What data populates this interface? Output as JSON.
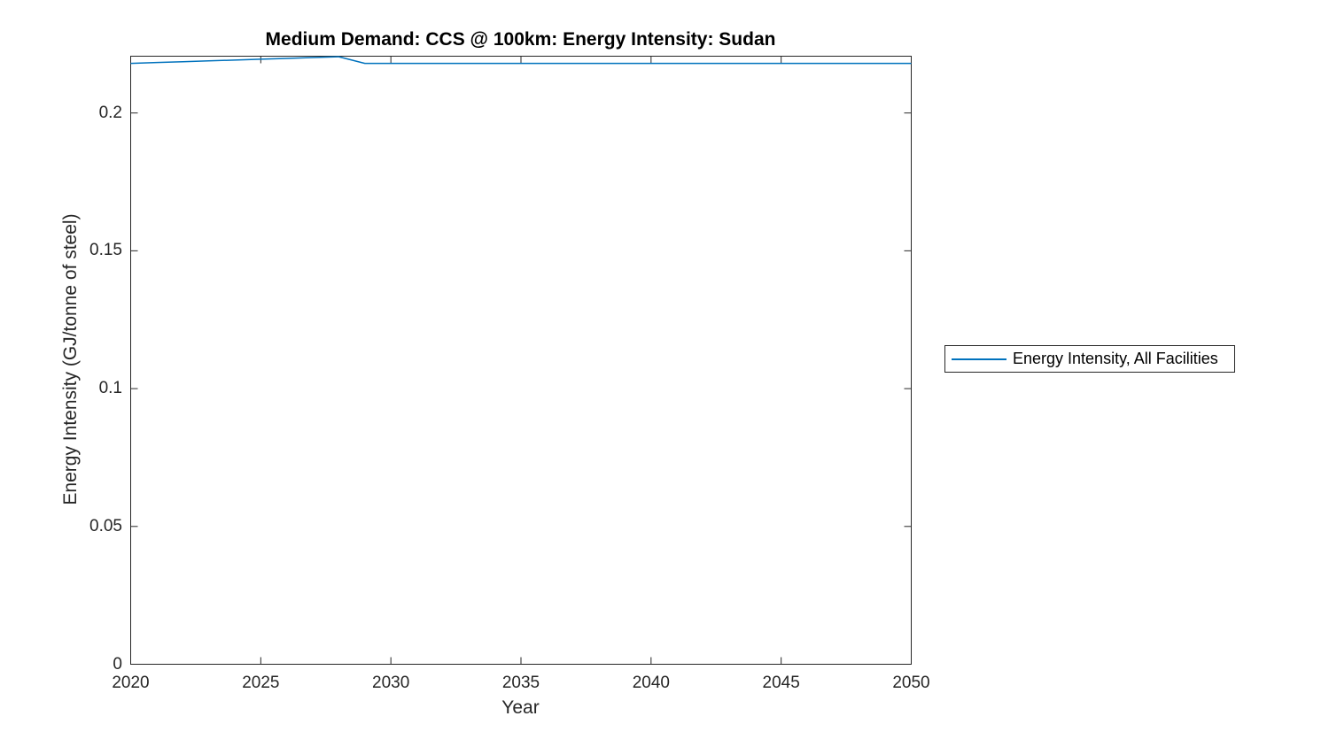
{
  "figure": {
    "background": "#ffffff"
  },
  "chart_data": {
    "type": "line",
    "title": "Medium Demand: CCS @ 100km: Energy Intensity: Sudan",
    "xlabel": "Year",
    "ylabel": "Energy Intensity (GJ/tonne of steel)",
    "xlim": [
      2020,
      2050
    ],
    "ylim": [
      0,
      0.2206
    ],
    "x_ticks": [
      2020,
      2025,
      2030,
      2035,
      2040,
      2045,
      2050
    ],
    "x_tick_labels": [
      "2020",
      "2025",
      "2030",
      "2035",
      "2040",
      "2045",
      "2050"
    ],
    "y_ticks": [
      0,
      0.05,
      0.1,
      0.15,
      0.2
    ],
    "y_tick_labels": [
      "0",
      "0.05",
      "0.1",
      "0.15",
      "0.2"
    ],
    "grid": false,
    "box": true,
    "tick_direction": "in",
    "axis_color": "#262626",
    "title_color": "#000000",
    "legend_position": "right-outside",
    "series": [
      {
        "name": "Energy Intensity, All Facilities",
        "color": "#0072BD",
        "x": [
          2020,
          2021,
          2022,
          2023,
          2024,
          2025,
          2026,
          2027,
          2028,
          2029,
          2030,
          2031,
          2032,
          2033,
          2034,
          2035,
          2036,
          2037,
          2038,
          2039,
          2040,
          2041,
          2042,
          2043,
          2044,
          2045,
          2046,
          2047,
          2048,
          2049,
          2050
        ],
        "values": [
          0.218,
          0.2183,
          0.2186,
          0.2189,
          0.2192,
          0.2195,
          0.2198,
          0.2201,
          0.2204,
          0.218,
          0.218,
          0.218,
          0.218,
          0.218,
          0.218,
          0.218,
          0.218,
          0.218,
          0.218,
          0.218,
          0.218,
          0.218,
          0.218,
          0.218,
          0.218,
          0.218,
          0.218,
          0.218,
          0.218,
          0.218,
          0.218
        ]
      }
    ]
  }
}
